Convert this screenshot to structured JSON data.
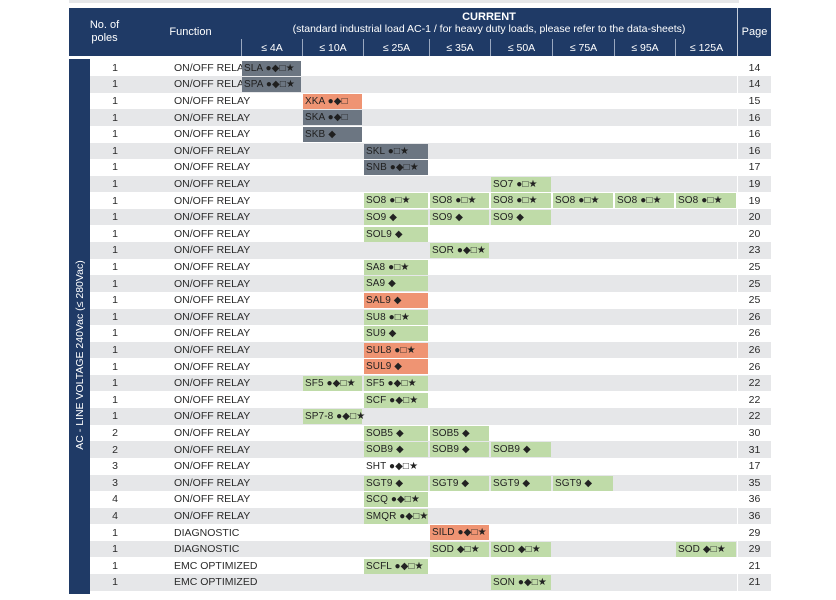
{
  "header": {
    "poles": "No. of poles",
    "function": "Function",
    "current_title": "CURRENT",
    "current_subtitle": "(standard industrial load AC-1 / for heavy duty loads, please refer to the data-sheets)",
    "page": "Page",
    "amps": [
      "≤ 4A",
      "≤ 10A",
      "≤ 25A",
      "≤ 35A",
      "≤ 50A",
      "≤ 75A",
      "≤ 95A",
      "≤ 125A"
    ]
  },
  "side_label": "AC - LINE VOLTAGE 240Vac (≤ 280Vac)",
  "colors": {
    "header": "#1f3a66",
    "gray": "#6c7682",
    "orange": "#ef9473",
    "green": "#bfdba8",
    "alt_row": "#e6e7e9"
  },
  "rows": [
    {
      "poles": "1",
      "function": "ON/OFF RELAY",
      "page": "14",
      "products": [
        {
          "col": 0,
          "span": 1,
          "text": "SLA ●◆□★",
          "color": "gray"
        }
      ]
    },
    {
      "poles": "1",
      "function": "ON/OFF RELAY",
      "page": "14",
      "products": [
        {
          "col": 0,
          "span": 1,
          "text": "SPA ●◆□★",
          "color": "gray"
        }
      ]
    },
    {
      "poles": "1",
      "function": "ON/OFF RELAY",
      "page": "15",
      "products": [
        {
          "col": 1,
          "span": 1,
          "text": "XKA ●◆□",
          "color": "orange"
        }
      ]
    },
    {
      "poles": "1",
      "function": "ON/OFF RELAY",
      "page": "16",
      "products": [
        {
          "col": 1,
          "span": 1,
          "text": "SKA ●◆□",
          "color": "gray"
        }
      ]
    },
    {
      "poles": "1",
      "function": "ON/OFF RELAY",
      "page": "16",
      "products": [
        {
          "col": 1,
          "span": 1,
          "text": "SKB ◆",
          "color": "gray"
        }
      ]
    },
    {
      "poles": "1",
      "function": "ON/OFF RELAY",
      "page": "16",
      "products": [
        {
          "col": 2,
          "span": 1,
          "text": "SKL ●□★",
          "color": "gray"
        }
      ]
    },
    {
      "poles": "1",
      "function": "ON/OFF RELAY",
      "page": "17",
      "products": [
        {
          "col": 2,
          "span": 1,
          "text": "SNB ●◆□★",
          "color": "gray"
        }
      ]
    },
    {
      "poles": "1",
      "function": "ON/OFF RELAY",
      "page": "19",
      "products": [
        {
          "col": 4,
          "span": 1,
          "text": "SO7 ●□★",
          "color": "green"
        }
      ]
    },
    {
      "poles": "1",
      "function": "ON/OFF RELAY",
      "page": "19",
      "products": [
        {
          "col": 2,
          "span": 1,
          "text": "SO8 ●□★",
          "color": "green"
        },
        {
          "col": 3,
          "span": 1,
          "text": "SO8 ●□★",
          "color": "green"
        },
        {
          "col": 4,
          "span": 1,
          "text": "SO8 ●□★",
          "color": "green"
        },
        {
          "col": 5,
          "span": 1,
          "text": "SO8 ●□★",
          "color": "green"
        },
        {
          "col": 6,
          "span": 1,
          "text": "SO8 ●□★",
          "color": "green"
        },
        {
          "col": 7,
          "span": 1,
          "text": "SO8 ●□★",
          "color": "green"
        }
      ]
    },
    {
      "poles": "1",
      "function": "ON/OFF RELAY",
      "page": "20",
      "products": [
        {
          "col": 2,
          "span": 1,
          "text": "SO9 ◆",
          "color": "green"
        },
        {
          "col": 3,
          "span": 1,
          "text": "SO9 ◆",
          "color": "green"
        },
        {
          "col": 4,
          "span": 1,
          "text": "SO9 ◆",
          "color": "green"
        }
      ]
    },
    {
      "poles": "1",
      "function": "ON/OFF RELAY",
      "page": "20",
      "products": [
        {
          "col": 2,
          "span": 1,
          "text": "SOL9 ◆",
          "color": "green"
        }
      ]
    },
    {
      "poles": "1",
      "function": "ON/OFF RELAY",
      "page": "23",
      "products": [
        {
          "col": 3,
          "span": 1,
          "text": "SOR ●◆□★",
          "color": "green"
        }
      ]
    },
    {
      "poles": "1",
      "function": "ON/OFF RELAY",
      "page": "25",
      "products": [
        {
          "col": 2,
          "span": 1,
          "text": "SA8 ●□★",
          "color": "green"
        }
      ]
    },
    {
      "poles": "1",
      "function": "ON/OFF RELAY",
      "page": "25",
      "products": [
        {
          "col": 2,
          "span": 1,
          "text": "SA9 ◆",
          "color": "green"
        }
      ]
    },
    {
      "poles": "1",
      "function": "ON/OFF RELAY",
      "page": "25",
      "products": [
        {
          "col": 2,
          "span": 1,
          "text": "SAL9 ◆",
          "color": "orange"
        }
      ]
    },
    {
      "poles": "1",
      "function": "ON/OFF RELAY",
      "page": "26",
      "products": [
        {
          "col": 2,
          "span": 1,
          "text": "SU8 ●□★",
          "color": "green"
        }
      ]
    },
    {
      "poles": "1",
      "function": "ON/OFF RELAY",
      "page": "26",
      "products": [
        {
          "col": 2,
          "span": 1,
          "text": "SU9 ◆",
          "color": "green"
        }
      ]
    },
    {
      "poles": "1",
      "function": "ON/OFF RELAY",
      "page": "26",
      "products": [
        {
          "col": 2,
          "span": 1,
          "text": "SUL8 ●□★",
          "color": "orange"
        }
      ]
    },
    {
      "poles": "1",
      "function": "ON/OFF RELAY",
      "page": "26",
      "products": [
        {
          "col": 2,
          "span": 1,
          "text": "SUL9 ◆",
          "color": "orange"
        }
      ]
    },
    {
      "poles": "1",
      "function": "ON/OFF RELAY",
      "page": "22",
      "products": [
        {
          "col": 1,
          "span": 1,
          "text": "SF5 ●◆□★",
          "color": "green"
        },
        {
          "col": 2,
          "span": 1,
          "text": "SF5 ●◆□★",
          "color": "green"
        }
      ]
    },
    {
      "poles": "1",
      "function": "ON/OFF RELAY",
      "page": "22",
      "products": [
        {
          "col": 2,
          "span": 1,
          "text": "SCF ●◆□★",
          "color": "green"
        }
      ]
    },
    {
      "poles": "1",
      "function": "ON/OFF RELAY",
      "page": "22",
      "products": [
        {
          "col": 1,
          "span": 1,
          "text": "SP7-8 ●◆□★",
          "color": "green"
        }
      ]
    },
    {
      "poles": "2",
      "function": "ON/OFF RELAY",
      "page": "30",
      "products": [
        {
          "col": 2,
          "span": 1,
          "text": "SOB5 ◆",
          "color": "green"
        },
        {
          "col": 3,
          "span": 1,
          "text": "SOB5 ◆",
          "color": "green"
        }
      ]
    },
    {
      "poles": "2",
      "function": "ON/OFF RELAY",
      "page": "31",
      "products": [
        {
          "col": 2,
          "span": 1,
          "text": "SOB9 ◆",
          "color": "green"
        },
        {
          "col": 3,
          "span": 1,
          "text": "SOB9 ◆",
          "color": "green"
        },
        {
          "col": 4,
          "span": 1,
          "text": "SOB9 ◆",
          "color": "green"
        }
      ]
    },
    {
      "poles": "3",
      "function": "ON/OFF RELAY",
      "page": "17",
      "products": [
        {
          "col": 2,
          "span": 1,
          "text": "SHT ●◆□★",
          "color": "white"
        }
      ]
    },
    {
      "poles": "3",
      "function": "ON/OFF RELAY",
      "page": "35",
      "products": [
        {
          "col": 2,
          "span": 1,
          "text": "SGT9 ◆",
          "color": "green"
        },
        {
          "col": 3,
          "span": 1,
          "text": "SGT9 ◆",
          "color": "green"
        },
        {
          "col": 4,
          "span": 1,
          "text": "SGT9 ◆",
          "color": "green"
        },
        {
          "col": 5,
          "span": 1,
          "text": "SGT9 ◆",
          "color": "green"
        }
      ]
    },
    {
      "poles": "4",
      "function": "ON/OFF RELAY",
      "page": "36",
      "products": [
        {
          "col": 2,
          "span": 1,
          "text": "SCQ ●◆□★",
          "color": "green"
        }
      ]
    },
    {
      "poles": "4",
      "function": "ON/OFF RELAY",
      "page": "36",
      "products": [
        {
          "col": 2,
          "span": 1,
          "text": "SMQR ●◆□★",
          "color": "green"
        }
      ]
    },
    {
      "poles": "1",
      "function": "DIAGNOSTIC",
      "page": "29",
      "products": [
        {
          "col": 3,
          "span": 1,
          "text": "SILD ●◆□★",
          "color": "orange"
        }
      ]
    },
    {
      "poles": "1",
      "function": "DIAGNOSTIC",
      "page": "29",
      "products": [
        {
          "col": 3,
          "span": 1,
          "text": "SOD ◆□★",
          "color": "green"
        },
        {
          "col": 4,
          "span": 1,
          "text": "SOD ◆□★",
          "color": "green"
        },
        {
          "col": 7,
          "span": 1,
          "text": "SOD ◆□★",
          "color": "green"
        }
      ]
    },
    {
      "poles": "1",
      "function": "EMC OPTIMIZED",
      "page": "21",
      "products": [
        {
          "col": 2,
          "span": 1,
          "text": "SCFL ●◆□★",
          "color": "green"
        }
      ]
    },
    {
      "poles": "1",
      "function": "EMC OPTIMIZED",
      "page": "21",
      "products": [
        {
          "col": 4,
          "span": 1,
          "text": "SON ●◆□★",
          "color": "green"
        }
      ]
    }
  ]
}
